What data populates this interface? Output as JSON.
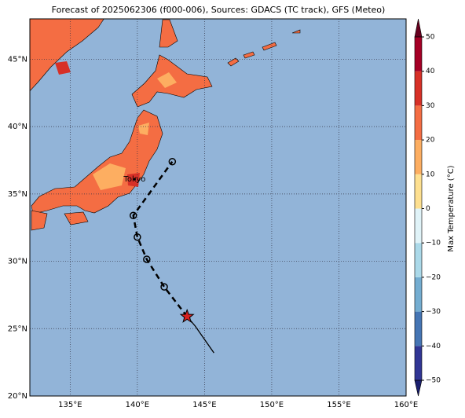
{
  "title": "Forecast of 2025062306 (f000-006), Sources: GDACS (TC track), GFS (Meteo)",
  "map": {
    "lon_range": [
      132,
      160
    ],
    "lat_range": [
      20,
      48
    ],
    "lon_ticks": [
      {
        "value": 135,
        "label": "135°E"
      },
      {
        "value": 140,
        "label": "140°E"
      },
      {
        "value": 145,
        "label": "145°E"
      },
      {
        "value": 150,
        "label": "150°E"
      },
      {
        "value": 155,
        "label": "155°E"
      },
      {
        "value": 160,
        "label": "160°E"
      }
    ],
    "lat_ticks": [
      {
        "value": 20,
        "label": "20°N"
      },
      {
        "value": 25,
        "label": "25°N"
      },
      {
        "value": 30,
        "label": "30°N"
      },
      {
        "value": 35,
        "label": "35°N"
      },
      {
        "value": 40,
        "label": "40°N"
      },
      {
        "value": 45,
        "label": "45°N"
      }
    ]
  },
  "places": [
    {
      "name": "Tokyo",
      "lon": 139.8,
      "lat": 36.1
    }
  ],
  "track": {
    "observed": {
      "lon": [
        145.7,
        145.0,
        144.3,
        143.7
      ],
      "lat": [
        23.2,
        24.2,
        25.2,
        25.9
      ]
    },
    "forecast": {
      "lon": [
        143.7,
        142.0,
        140.7,
        140.0,
        139.7,
        142.6
      ],
      "lat": [
        25.9,
        28.1,
        30.15,
        31.8,
        33.4,
        37.4
      ]
    }
  },
  "colorbar": {
    "label": "Max Temperature (°C)",
    "range": [
      -50,
      50
    ],
    "levels": [
      -50,
      -40,
      -30,
      -20,
      -10,
      0,
      10,
      20,
      30,
      40,
      50
    ],
    "colors": [
      "#313695",
      "#4575b4",
      "#74add1",
      "#abd9e9",
      "#e0f3f8",
      "#fee090",
      "#fdae61",
      "#f46d43",
      "#d73027",
      "#a50026"
    ],
    "ticks": [
      {
        "value": -50,
        "label": "−50"
      },
      {
        "value": -40,
        "label": "−40"
      },
      {
        "value": -30,
        "label": "−30"
      },
      {
        "value": -20,
        "label": "−20"
      },
      {
        "value": -10,
        "label": "−10"
      },
      0,
      10,
      20,
      30,
      40,
      50
    ]
  }
}
